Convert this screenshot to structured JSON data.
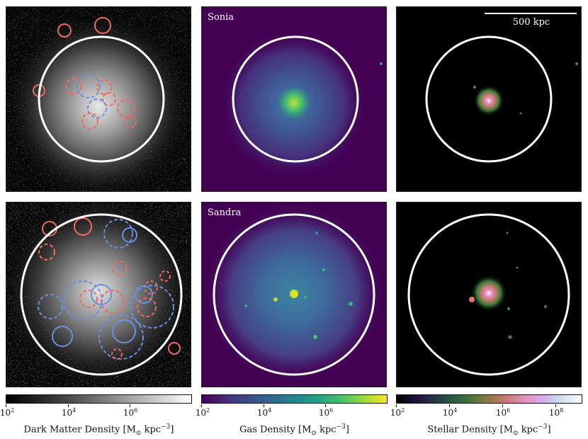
{
  "rows": [
    {
      "label": "Sonia"
    },
    {
      "label": "Sandra"
    }
  ],
  "scalebar": {
    "text": "500 kpc"
  },
  "colorbars": [
    {
      "name": "Dark Matter Density",
      "label_main": "Dark Matter Density [M",
      "label_sub": "⊙",
      "label_unit": " kpc",
      "label_exp": "−3",
      "label_close": "]",
      "ticks": [
        {
          "base": "10",
          "exp": "2"
        },
        {
          "base": "10",
          "exp": "4"
        },
        {
          "base": "10",
          "exp": "6"
        }
      ]
    },
    {
      "name": "Gas Density",
      "label_main": "Gas Density [M",
      "label_sub": "⊙",
      "label_unit": " kpc",
      "label_exp": "−3",
      "label_close": "]",
      "ticks": [
        {
          "base": "10",
          "exp": "2"
        },
        {
          "base": "10",
          "exp": "4"
        },
        {
          "base": "10",
          "exp": "6"
        }
      ]
    },
    {
      "name": "Stellar Density",
      "label_main": "Stellar Density [M",
      "label_sub": "⊙",
      "label_unit": " kpc",
      "label_exp": "−3",
      "label_close": "]",
      "ticks": [
        {
          "base": "10",
          "exp": "2"
        },
        {
          "base": "10",
          "exp": "4"
        },
        {
          "base": "10",
          "exp": "6"
        },
        {
          "base": "10",
          "exp": "8"
        }
      ]
    }
  ],
  "colors": {
    "dm_background": "#050505",
    "gas_background": "#440154",
    "star_background": "#000000",
    "virial_circle": "#ffffff",
    "subhalo_red": "#ee6a62",
    "subhalo_blue": "#6b8fe0"
  }
}
